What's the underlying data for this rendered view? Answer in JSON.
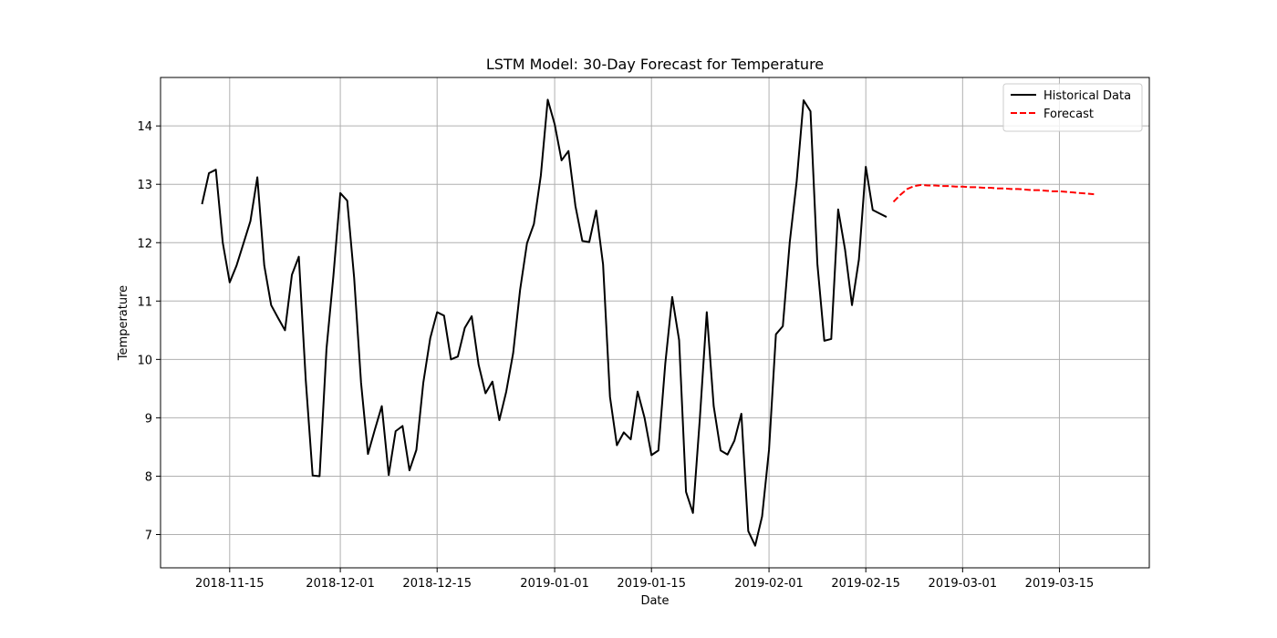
{
  "chart_data": {
    "type": "line",
    "title": "LSTM Model: 30-Day Forecast for Temperature",
    "xlabel": "Date",
    "ylabel": "Temperature",
    "x_ticks": [
      "2018-11-15",
      "2018-12-01",
      "2018-12-15",
      "2019-01-01",
      "2019-01-15",
      "2019-02-01",
      "2019-02-15",
      "2019-03-01",
      "2019-03-15"
    ],
    "y_ticks": [
      7,
      8,
      9,
      10,
      11,
      12,
      13,
      14
    ],
    "xlim": [
      "2018-11-05",
      "2019-03-28"
    ],
    "ylim": [
      6.43,
      14.83
    ],
    "grid": true,
    "legend_position": "upper right",
    "series": [
      {
        "name": "Historical Data",
        "color": "#000000",
        "style": "solid",
        "x": [
          "2018-11-11",
          "2018-11-12",
          "2018-11-13",
          "2018-11-14",
          "2018-11-15",
          "2018-11-16",
          "2018-11-17",
          "2018-11-18",
          "2018-11-19",
          "2018-11-20",
          "2018-11-21",
          "2018-11-22",
          "2018-11-23",
          "2018-11-24",
          "2018-11-25",
          "2018-11-26",
          "2018-11-27",
          "2018-11-28",
          "2018-11-29",
          "2018-11-30",
          "2018-12-01",
          "2018-12-02",
          "2018-12-03",
          "2018-12-04",
          "2018-12-05",
          "2018-12-06",
          "2018-12-07",
          "2018-12-08",
          "2018-12-09",
          "2018-12-10",
          "2018-12-11",
          "2018-12-12",
          "2018-12-13",
          "2018-12-14",
          "2018-12-15",
          "2018-12-16",
          "2018-12-17",
          "2018-12-18",
          "2018-12-19",
          "2018-12-20",
          "2018-12-21",
          "2018-12-22",
          "2018-12-23",
          "2018-12-24",
          "2018-12-25",
          "2018-12-26",
          "2018-12-27",
          "2018-12-28",
          "2018-12-29",
          "2018-12-30",
          "2018-12-31",
          "2019-01-01",
          "2019-01-02",
          "2019-01-03",
          "2019-01-04",
          "2019-01-05",
          "2019-01-06",
          "2019-01-07",
          "2019-01-08",
          "2019-01-09",
          "2019-01-10",
          "2019-01-11",
          "2019-01-12",
          "2019-01-13",
          "2019-01-14",
          "2019-01-15",
          "2019-01-16",
          "2019-01-17",
          "2019-01-18",
          "2019-01-19",
          "2019-01-20",
          "2019-01-21",
          "2019-01-22",
          "2019-01-23",
          "2019-01-24",
          "2019-01-25",
          "2019-01-26",
          "2019-01-27",
          "2019-01-28",
          "2019-01-29",
          "2019-01-30",
          "2019-01-31",
          "2019-02-01",
          "2019-02-02",
          "2019-02-03",
          "2019-02-04",
          "2019-02-05",
          "2019-02-06",
          "2019-02-07",
          "2019-02-08",
          "2019-02-09",
          "2019-02-10",
          "2019-02-11",
          "2019-02-12",
          "2019-02-13",
          "2019-02-14",
          "2019-02-15",
          "2019-02-16",
          "2019-02-17",
          "2019-02-18"
        ],
        "values": [
          12.66,
          13.19,
          13.25,
          12.0,
          11.32,
          11.61,
          11.99,
          12.37,
          13.12,
          11.61,
          10.93,
          10.71,
          10.5,
          11.45,
          11.76,
          9.65,
          8.01,
          8.0,
          10.18,
          11.43,
          12.85,
          12.72,
          11.4,
          9.6,
          8.38,
          8.8,
          9.2,
          8.02,
          8.77,
          8.86,
          8.1,
          8.45,
          9.6,
          10.36,
          10.81,
          10.75,
          10.0,
          10.05,
          10.54,
          10.74,
          9.91,
          9.42,
          9.62,
          8.96,
          9.45,
          10.11,
          11.19,
          11.99,
          12.32,
          13.15,
          14.45,
          14.03,
          13.41,
          13.57,
          12.63,
          12.03,
          12.01,
          12.55,
          11.63,
          9.36,
          8.53,
          8.75,
          8.63,
          9.45,
          9.0,
          8.36,
          8.44,
          9.93,
          11.07,
          10.33,
          7.73,
          7.37,
          8.99,
          10.81,
          9.2,
          8.44,
          8.37,
          8.61,
          9.07,
          7.06,
          6.81,
          7.31,
          8.45,
          10.43,
          10.57,
          12.01,
          13.05,
          14.44,
          14.25,
          11.63,
          10.32,
          10.35,
          12.57,
          11.88,
          10.93,
          11.71,
          13.3,
          12.56,
          12.5,
          12.44
        ]
      },
      {
        "name": "Forecast",
        "color": "#ff0000",
        "style": "dashed",
        "x": [
          "2019-02-19",
          "2019-02-20",
          "2019-02-21",
          "2019-02-22",
          "2019-02-23",
          "2019-02-24",
          "2019-02-25",
          "2019-02-26",
          "2019-02-27",
          "2019-02-28",
          "2019-03-01",
          "2019-03-02",
          "2019-03-03",
          "2019-03-04",
          "2019-03-05",
          "2019-03-06",
          "2019-03-07",
          "2019-03-08",
          "2019-03-09",
          "2019-03-10",
          "2019-03-11",
          "2019-03-12",
          "2019-03-13",
          "2019-03-14",
          "2019-03-15",
          "2019-03-16",
          "2019-03-17",
          "2019-03-18",
          "2019-03-19",
          "2019-03-20"
        ],
        "values": [
          12.7,
          12.82,
          12.92,
          12.97,
          12.99,
          12.98,
          12.98,
          12.97,
          12.97,
          12.96,
          12.96,
          12.95,
          12.95,
          12.94,
          12.94,
          12.93,
          12.93,
          12.92,
          12.92,
          12.91,
          12.9,
          12.9,
          12.89,
          12.88,
          12.88,
          12.87,
          12.86,
          12.85,
          12.84,
          12.83
        ]
      }
    ]
  }
}
